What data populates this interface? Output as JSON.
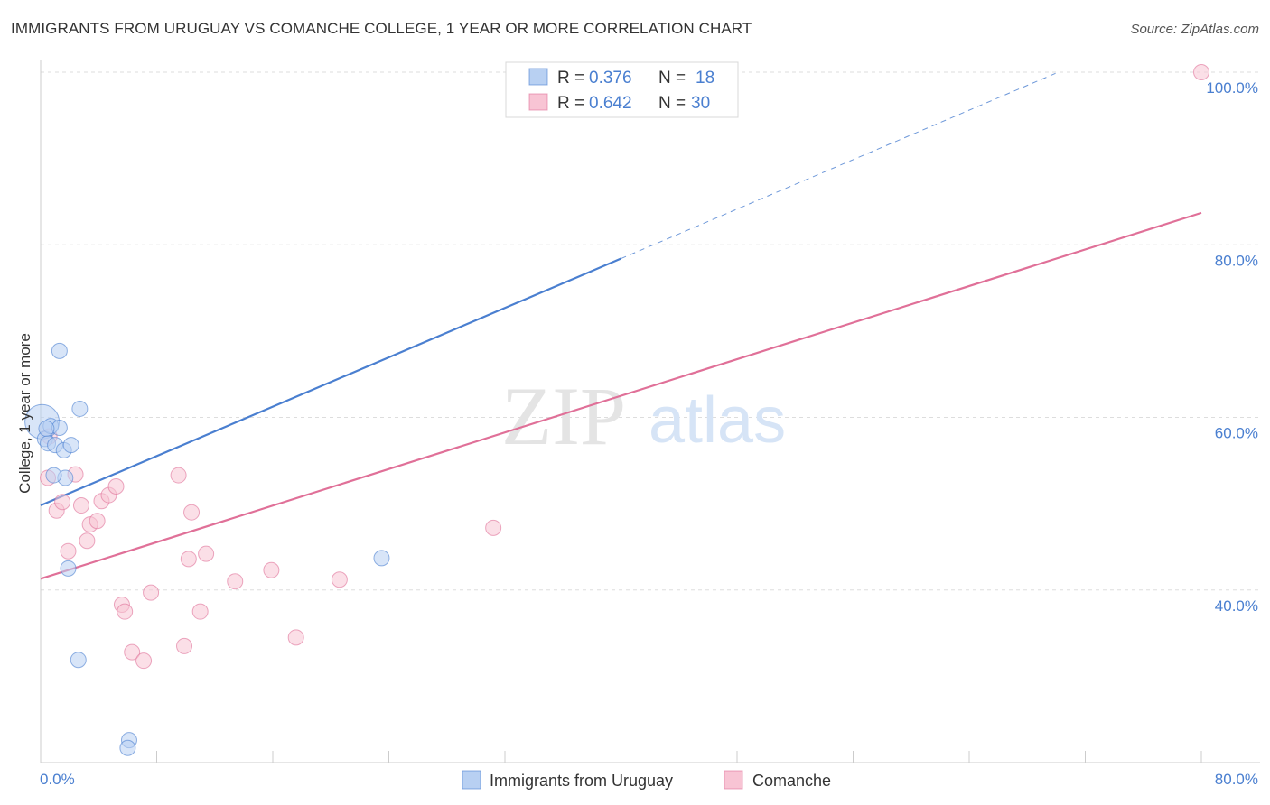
{
  "chart_data": {
    "type": "scatter",
    "title": "IMMIGRANTS FROM URUGUAY VS COMANCHE COLLEGE, 1 YEAR OR MORE CORRELATION CHART",
    "source": "Source: ZipAtlas.com",
    "ylabel": "College, 1 year or more",
    "xlim": [
      0,
      80
    ],
    "ylim": [
      20,
      100
    ],
    "x_tick_labels": [
      "0.0%",
      "80.0%"
    ],
    "y_ticks": [
      40,
      60,
      80,
      100
    ],
    "y_tick_labels": [
      "40.0%",
      "60.0%",
      "80.0%",
      "100.0%"
    ],
    "watermark": {
      "zip": "ZIP",
      "atlas": "atlas"
    },
    "series": [
      {
        "name": "Immigrants from Uruguay",
        "color": "#4a7fd0",
        "fill": "#b8d0f2",
        "r_label": "R =",
        "r_value": "0.376",
        "n_label": "N =",
        "n_value": "18",
        "trend": {
          "x0": 0,
          "y0": 49.8,
          "x1": 40,
          "y1": 78.4,
          "dash_x1": 70,
          "dash_y1": 99.9
        },
        "points": [
          {
            "x": 0.1,
            "y": 59.5,
            "big": true
          },
          {
            "x": 0.3,
            "y": 57.5
          },
          {
            "x": 0.5,
            "y": 57.0
          },
          {
            "x": 0.7,
            "y": 59.0
          },
          {
            "x": 1.0,
            "y": 56.8
          },
          {
            "x": 1.3,
            "y": 58.8
          },
          {
            "x": 1.6,
            "y": 56.2
          },
          {
            "x": 2.1,
            "y": 56.8
          },
          {
            "x": 1.7,
            "y": 53.0
          },
          {
            "x": 0.9,
            "y": 53.3
          },
          {
            "x": 1.3,
            "y": 67.7
          },
          {
            "x": 2.7,
            "y": 61.0
          },
          {
            "x": 1.9,
            "y": 42.5
          },
          {
            "x": 2.6,
            "y": 31.9
          },
          {
            "x": 6.1,
            "y": 22.6
          },
          {
            "x": 6.0,
            "y": 21.7
          },
          {
            "x": 23.5,
            "y": 43.7
          },
          {
            "x": 0.4,
            "y": 58.7
          }
        ]
      },
      {
        "name": "Comanche",
        "color": "#e07098",
        "fill": "#f8c4d4",
        "r_label": "R =",
        "r_value": "0.642",
        "n_label": "N =",
        "n_value": "30",
        "trend": {
          "x0": 0,
          "y0": 41.3,
          "x1": 80,
          "y1": 83.7
        },
        "points": [
          {
            "x": 0.5,
            "y": 53.0
          },
          {
            "x": 1.1,
            "y": 49.2
          },
          {
            "x": 1.5,
            "y": 50.2
          },
          {
            "x": 2.4,
            "y": 53.4
          },
          {
            "x": 1.9,
            "y": 44.5
          },
          {
            "x": 2.8,
            "y": 49.8
          },
          {
            "x": 3.4,
            "y": 47.6
          },
          {
            "x": 3.9,
            "y": 48.0
          },
          {
            "x": 4.2,
            "y": 50.3
          },
          {
            "x": 4.7,
            "y": 51.0
          },
          {
            "x": 5.2,
            "y": 52.0
          },
          {
            "x": 3.2,
            "y": 45.7
          },
          {
            "x": 5.6,
            "y": 38.3
          },
          {
            "x": 5.8,
            "y": 37.5
          },
          {
            "x": 7.6,
            "y": 39.7
          },
          {
            "x": 9.5,
            "y": 53.3
          },
          {
            "x": 10.4,
            "y": 49.0
          },
          {
            "x": 10.2,
            "y": 43.6
          },
          {
            "x": 11.4,
            "y": 44.2
          },
          {
            "x": 11.0,
            "y": 37.5
          },
          {
            "x": 6.3,
            "y": 32.8
          },
          {
            "x": 7.1,
            "y": 31.8
          },
          {
            "x": 9.9,
            "y": 33.5
          },
          {
            "x": 13.4,
            "y": 41.0
          },
          {
            "x": 15.9,
            "y": 42.3
          },
          {
            "x": 17.6,
            "y": 34.5
          },
          {
            "x": 20.6,
            "y": 41.2
          },
          {
            "x": 31.2,
            "y": 47.2
          },
          {
            "x": 80.0,
            "y": 100.0
          },
          {
            "x": 0.6,
            "y": 57.8
          }
        ]
      }
    ]
  },
  "colors": {
    "grid": "#dddddd",
    "axis": "#cccccc",
    "tick_text": "#4a7fd0"
  }
}
